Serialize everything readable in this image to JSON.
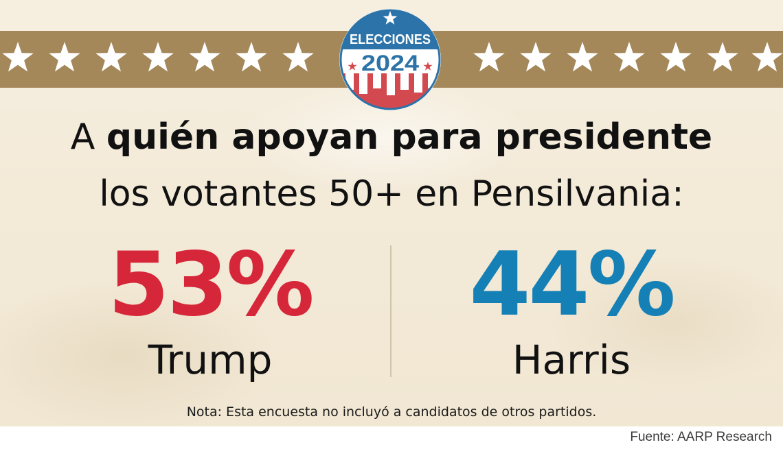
{
  "badge": {
    "line1": "ELECCIONES",
    "year": "2024"
  },
  "headline": {
    "line1_normal": "A ",
    "line1_bold": "quién apoyan para presidente",
    "line2": "los votantes 50+ en Pensilvania:"
  },
  "results": [
    {
      "percent": "53%",
      "candidate": "Trump",
      "color": "#d6273a"
    },
    {
      "percent": "44%",
      "candidate": "Harris",
      "color": "#1580b5"
    }
  ],
  "note": "Nota: Esta encuesta no incluyó a candidatos de otros partidos.",
  "source": "Fuente: AARP Research",
  "colors": {
    "band": "#a4885a",
    "background": "#f4ecdc",
    "badge_blue": "#2b73a8",
    "badge_red": "#d24a4f"
  }
}
